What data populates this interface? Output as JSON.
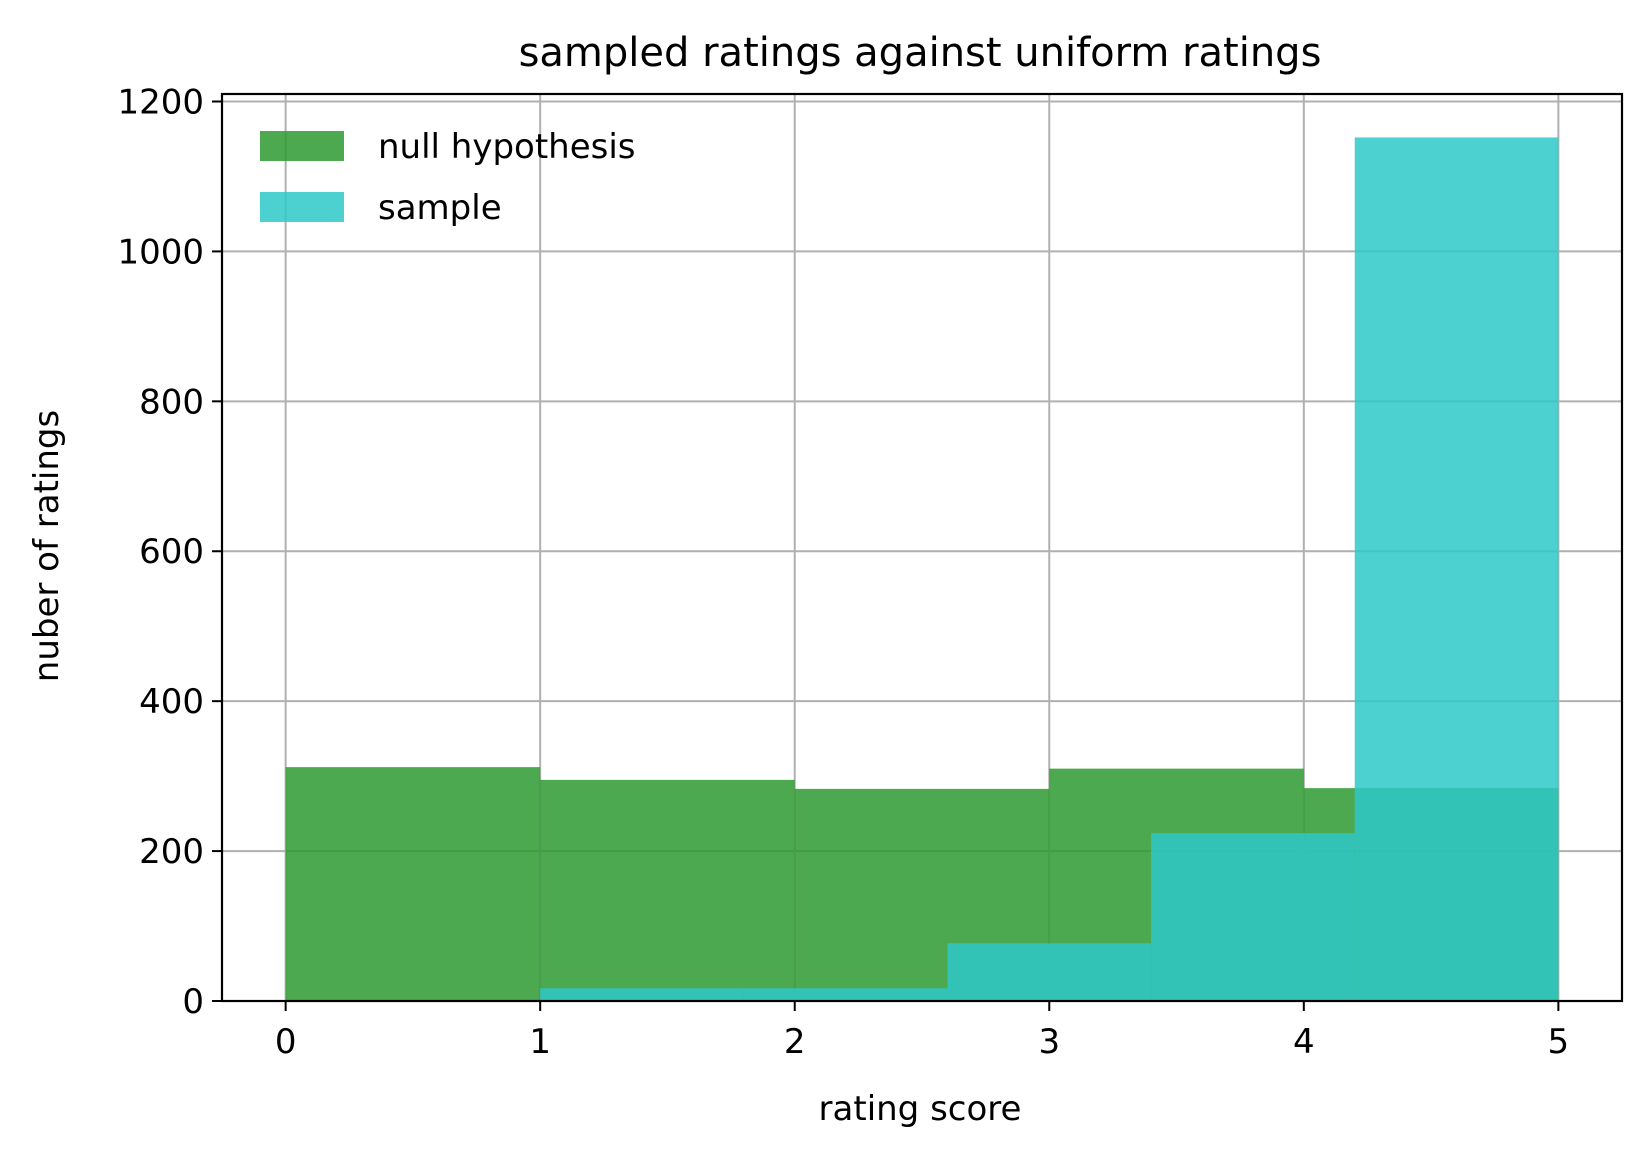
{
  "chart_data": {
    "type": "bar",
    "title": "sampled ratings against uniform ratings",
    "xlabel": "rating score",
    "ylabel": "nuber of ratings",
    "xlim": [
      -0.25,
      5.25
    ],
    "ylim": [
      0,
      1210
    ],
    "xticks": [
      0,
      1,
      2,
      3,
      4,
      5
    ],
    "yticks": [
      0,
      200,
      400,
      600,
      800,
      1000,
      1200
    ],
    "grid": true,
    "legend_position": "upper-left",
    "series": [
      {
        "name": "null hypothesis",
        "color": "#2e9a30",
        "opacity": 0.85,
        "bins": [
          {
            "x0": 0,
            "x1": 1,
            "value": 312
          },
          {
            "x0": 1,
            "x1": 2,
            "value": 295
          },
          {
            "x0": 2,
            "x1": 3,
            "value": 283
          },
          {
            "x0": 3,
            "x1": 4,
            "value": 310
          },
          {
            "x0": 4,
            "x1": 5,
            "value": 284
          }
        ]
      },
      {
        "name": "sample",
        "color": "#2ec8c8",
        "opacity": 0.85,
        "bins": [
          {
            "x0": 1.0,
            "x1": 1.8,
            "value": 17
          },
          {
            "x0": 1.8,
            "x1": 2.6,
            "value": 17
          },
          {
            "x0": 2.6,
            "x1": 3.4,
            "value": 77
          },
          {
            "x0": 3.4,
            "x1": 4.2,
            "value": 224
          },
          {
            "x0": 4.2,
            "x1": 5.0,
            "value": 1152
          }
        ]
      }
    ]
  }
}
